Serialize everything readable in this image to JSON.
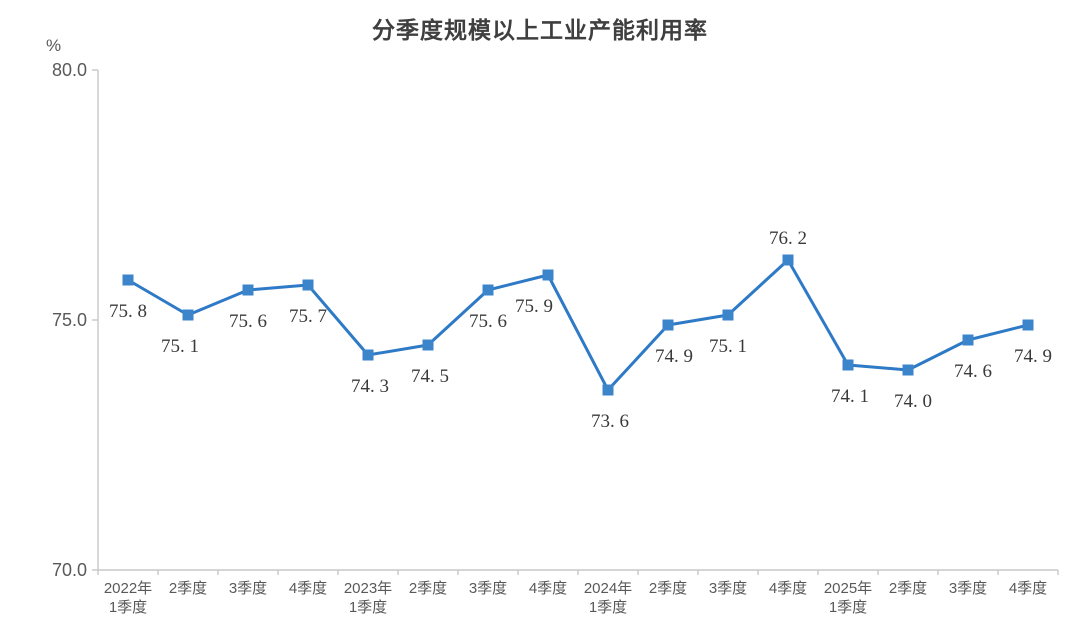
{
  "chart_data": {
    "type": "line",
    "title": "分季度规模以上工业产能利用率",
    "unit": "%",
    "categories": [
      [
        "2022年",
        "1季度"
      ],
      [
        "2季度"
      ],
      [
        "3季度"
      ],
      [
        "4季度"
      ],
      [
        "2023年",
        "1季度"
      ],
      [
        "2季度"
      ],
      [
        "3季度"
      ],
      [
        "4季度"
      ],
      [
        "2024年",
        "1季度"
      ],
      [
        "2季度"
      ],
      [
        "3季度"
      ],
      [
        "4季度"
      ],
      [
        "2025年",
        "1季度"
      ],
      [
        "2季度"
      ],
      [
        "3季度"
      ],
      [
        "4季度"
      ]
    ],
    "values": [
      75.8,
      75.1,
      75.6,
      75.7,
      74.3,
      74.5,
      75.6,
      75.9,
      73.6,
      74.9,
      75.1,
      76.2,
      74.1,
      74.0,
      74.6,
      74.9
    ],
    "data_labels": [
      "75. 8",
      "75. 1",
      "75. 6",
      "75. 7",
      "74. 3",
      "74. 5",
      "75. 6",
      "75. 9",
      "73. 6",
      "74. 9",
      "75. 1",
      "76. 2",
      "74. 1",
      "74. 0",
      "74. 6",
      "74. 9"
    ],
    "label_positions": [
      "below",
      "below",
      "below",
      "below",
      "below",
      "below",
      "below",
      "below",
      "below",
      "below",
      "below",
      "above",
      "below",
      "below",
      "below",
      "below"
    ],
    "label_dx": [
      0,
      -8,
      0,
      0,
      2,
      2,
      0,
      -14,
      2,
      6,
      0,
      0,
      2,
      5,
      5,
      5
    ],
    "ylim": [
      70,
      80
    ],
    "yticks": [
      {
        "value": 80,
        "label": "80.0"
      },
      {
        "value": 75,
        "label": "75.0"
      },
      {
        "value": 70,
        "label": "70.0"
      }
    ],
    "grid": false,
    "legend": "none",
    "marker": "square",
    "colors": {
      "line": "#2e7ac6",
      "marker": "#3c85cb",
      "axis": "#c8c8c8",
      "tick_label": "#595959",
      "data_label": "#3a3a3a",
      "title": "#3f3f3f"
    }
  }
}
